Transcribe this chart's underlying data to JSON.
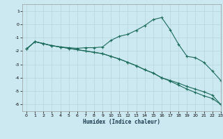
{
  "xlabel": "Humidex (Indice chaleur)",
  "bg_color": "#cce8f0",
  "grid_color": "#b8d8e0",
  "line_color": "#1a6b5a",
  "xlim": [
    -0.5,
    23
  ],
  "ylim": [
    -6.5,
    1.5
  ],
  "yticks": [
    1,
    0,
    -1,
    -2,
    -3,
    -4,
    -5,
    -6
  ],
  "xticks": [
    0,
    1,
    2,
    3,
    4,
    5,
    6,
    7,
    8,
    9,
    10,
    11,
    12,
    13,
    14,
    15,
    16,
    17,
    18,
    19,
    20,
    21,
    22,
    23
  ],
  "series1_x": [
    0,
    1,
    2,
    3,
    4,
    5,
    6,
    7,
    8,
    9,
    10,
    11,
    12,
    13,
    14,
    15,
    16,
    17,
    18,
    19,
    20,
    21,
    22,
    23
  ],
  "series1_y": [
    -1.85,
    -1.3,
    -1.45,
    -1.6,
    -1.7,
    -1.75,
    -1.8,
    -1.75,
    -1.75,
    -1.7,
    -1.2,
    -0.9,
    -0.75,
    -0.45,
    -0.1,
    0.35,
    0.5,
    -0.4,
    -1.5,
    -2.4,
    -2.5,
    -2.85,
    -3.5,
    -4.2
  ],
  "series2_x": [
    0,
    1,
    2,
    3,
    4,
    5,
    6,
    7,
    8,
    9,
    10,
    11,
    12,
    13,
    14,
    15,
    16,
    17,
    18,
    19,
    20,
    21,
    22,
    23
  ],
  "series2_y": [
    -1.85,
    -1.3,
    -1.45,
    -1.6,
    -1.7,
    -1.8,
    -1.9,
    -2.0,
    -2.1,
    -2.2,
    -2.4,
    -2.6,
    -2.85,
    -3.1,
    -3.4,
    -3.65,
    -4.0,
    -4.2,
    -4.4,
    -4.65,
    -4.85,
    -5.05,
    -5.3,
    -6.0
  ],
  "series3_x": [
    0,
    1,
    2,
    3,
    4,
    5,
    6,
    7,
    8,
    9,
    10,
    11,
    12,
    13,
    14,
    15,
    16,
    17,
    18,
    19,
    20,
    21,
    22,
    23
  ],
  "series3_y": [
    -1.85,
    -1.3,
    -1.45,
    -1.6,
    -1.7,
    -1.8,
    -1.9,
    -2.0,
    -2.1,
    -2.2,
    -2.4,
    -2.6,
    -2.85,
    -3.1,
    -3.4,
    -3.65,
    -4.0,
    -4.25,
    -4.55,
    -4.85,
    -5.1,
    -5.35,
    -5.55,
    -6.0
  ]
}
